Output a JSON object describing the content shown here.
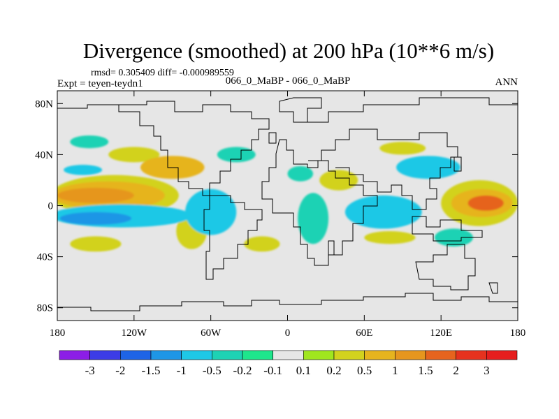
{
  "chart_data": {
    "type": "heatmap",
    "title": "Divergence (smoothed) at 200 hPa (10**6 m/s)",
    "subtitle_left_top": "rmsd= 0.305409 diff= -0.000989559",
    "subtitle_left": "Expt = teyen-teydn1",
    "subtitle_center": "066_0_MaBP - 066_0_MaBP",
    "subtitle_right": "ANN",
    "x_range": [
      -180,
      180
    ],
    "y_range": [
      -90,
      90
    ],
    "x_ticks": [
      {
        "value": -180,
        "label": "180"
      },
      {
        "value": -120,
        "label": "120W"
      },
      {
        "value": -60,
        "label": "60W"
      },
      {
        "value": 0,
        "label": "0"
      },
      {
        "value": 60,
        "label": "60E"
      },
      {
        "value": 120,
        "label": "120E"
      },
      {
        "value": 180,
        "label": "180"
      }
    ],
    "y_ticks": [
      {
        "value": 80,
        "label": "80N"
      },
      {
        "value": 40,
        "label": "40N"
      },
      {
        "value": 0,
        "label": "0"
      },
      {
        "value": -40,
        "label": "40S"
      },
      {
        "value": -80,
        "label": "80S"
      }
    ],
    "colorbar": {
      "labels": [
        "-3",
        "-2",
        "-1.5",
        "-1",
        "-0.5",
        "-0.2",
        "-0.1",
        "0.1",
        "0.2",
        "0.5",
        "1",
        "1.5",
        "2",
        "3"
      ],
      "colors": [
        "#8c1ee6",
        "#3c3ce6",
        "#1e64e6",
        "#1e96e6",
        "#1ec8e6",
        "#1ed2b4",
        "#1ee68c",
        "#e6e6e6",
        "#a0e61e",
        "#d2d21e",
        "#e6b41e",
        "#e6961e",
        "#e6641e",
        "#e6321e",
        "#e61e1e"
      ]
    },
    "regions": [
      {
        "name": "central-pacific-north-high",
        "lon": -150,
        "lat": 8,
        "rx": 30,
        "ry": 6,
        "level": 11
      },
      {
        "name": "central-pacific-north-mid",
        "lon": -140,
        "lat": 8,
        "rx": 44,
        "ry": 11,
        "level": 10
      },
      {
        "name": "central-pacific-north-low",
        "lon": -135,
        "lat": 8,
        "rx": 50,
        "ry": 16,
        "level": 9
      },
      {
        "name": "east-pacific-south-neg",
        "lon": -130,
        "lat": -8,
        "rx": 55,
        "ry": 9,
        "level": 4
      },
      {
        "name": "east-pacific-south-core",
        "lon": -150,
        "lat": -10,
        "rx": 28,
        "ry": 5,
        "level": 3
      },
      {
        "name": "west-pacific-high",
        "lon": 155,
        "lat": 2,
        "rx": 14,
        "ry": 6,
        "level": 12
      },
      {
        "name": "west-pacific-mid",
        "lon": 152,
        "lat": 2,
        "rx": 24,
        "ry": 11,
        "level": 10
      },
      {
        "name": "west-pacific-low",
        "lon": 150,
        "lat": 2,
        "rx": 30,
        "ry": 18,
        "level": 9
      },
      {
        "name": "indian-ocean-neg",
        "lon": 75,
        "lat": -5,
        "rx": 30,
        "ry": 13,
        "level": 4
      },
      {
        "name": "amazon-neg",
        "lon": -60,
        "lat": -5,
        "rx": 20,
        "ry": 18,
        "level": 4
      },
      {
        "name": "africa-neg",
        "lon": 20,
        "lat": -10,
        "rx": 12,
        "ry": 20,
        "level": 5
      },
      {
        "name": "north-atlantic-pos",
        "lon": -90,
        "lat": 30,
        "rx": 25,
        "ry": 9,
        "level": 10
      },
      {
        "name": "north-america-pos",
        "lon": -120,
        "lat": 40,
        "rx": 20,
        "ry": 6,
        "level": 9
      },
      {
        "name": "south-pacific-pos",
        "lon": -150,
        "lat": -30,
        "rx": 20,
        "ry": 6,
        "level": 9
      },
      {
        "name": "south-america-pos",
        "lon": -75,
        "lat": -20,
        "rx": 12,
        "ry": 14,
        "level": 9
      },
      {
        "name": "east-asia-neg",
        "lon": 110,
        "lat": 30,
        "rx": 25,
        "ry": 9,
        "level": 4
      },
      {
        "name": "north-pacific-neg",
        "lon": -155,
        "lat": 50,
        "rx": 15,
        "ry": 5,
        "level": 5
      },
      {
        "name": "arabia-pos",
        "lon": 40,
        "lat": 20,
        "rx": 15,
        "ry": 8,
        "level": 9
      },
      {
        "name": "south-indian-pos",
        "lon": 80,
        "lat": -25,
        "rx": 20,
        "ry": 5,
        "level": 9
      },
      {
        "name": "australia-neg",
        "lon": 130,
        "lat": -25,
        "rx": 15,
        "ry": 7,
        "level": 5
      },
      {
        "name": "tibet-pos",
        "lon": 90,
        "lat": 45,
        "rx": 18,
        "ry": 5,
        "level": 9
      },
      {
        "name": "north-atlantic-neg",
        "lon": -40,
        "lat": 40,
        "rx": 15,
        "ry": 6,
        "level": 5
      },
      {
        "name": "south-atlantic-pos",
        "lon": -20,
        "lat": -30,
        "rx": 14,
        "ry": 6,
        "level": 9
      },
      {
        "name": "mediterranean-neg",
        "lon": 10,
        "lat": 25,
        "rx": 10,
        "ry": 6,
        "level": 5
      },
      {
        "name": "east-pacific-neg-north",
        "lon": -160,
        "lat": 28,
        "rx": 15,
        "ry": 4,
        "level": 4
      }
    ]
  }
}
